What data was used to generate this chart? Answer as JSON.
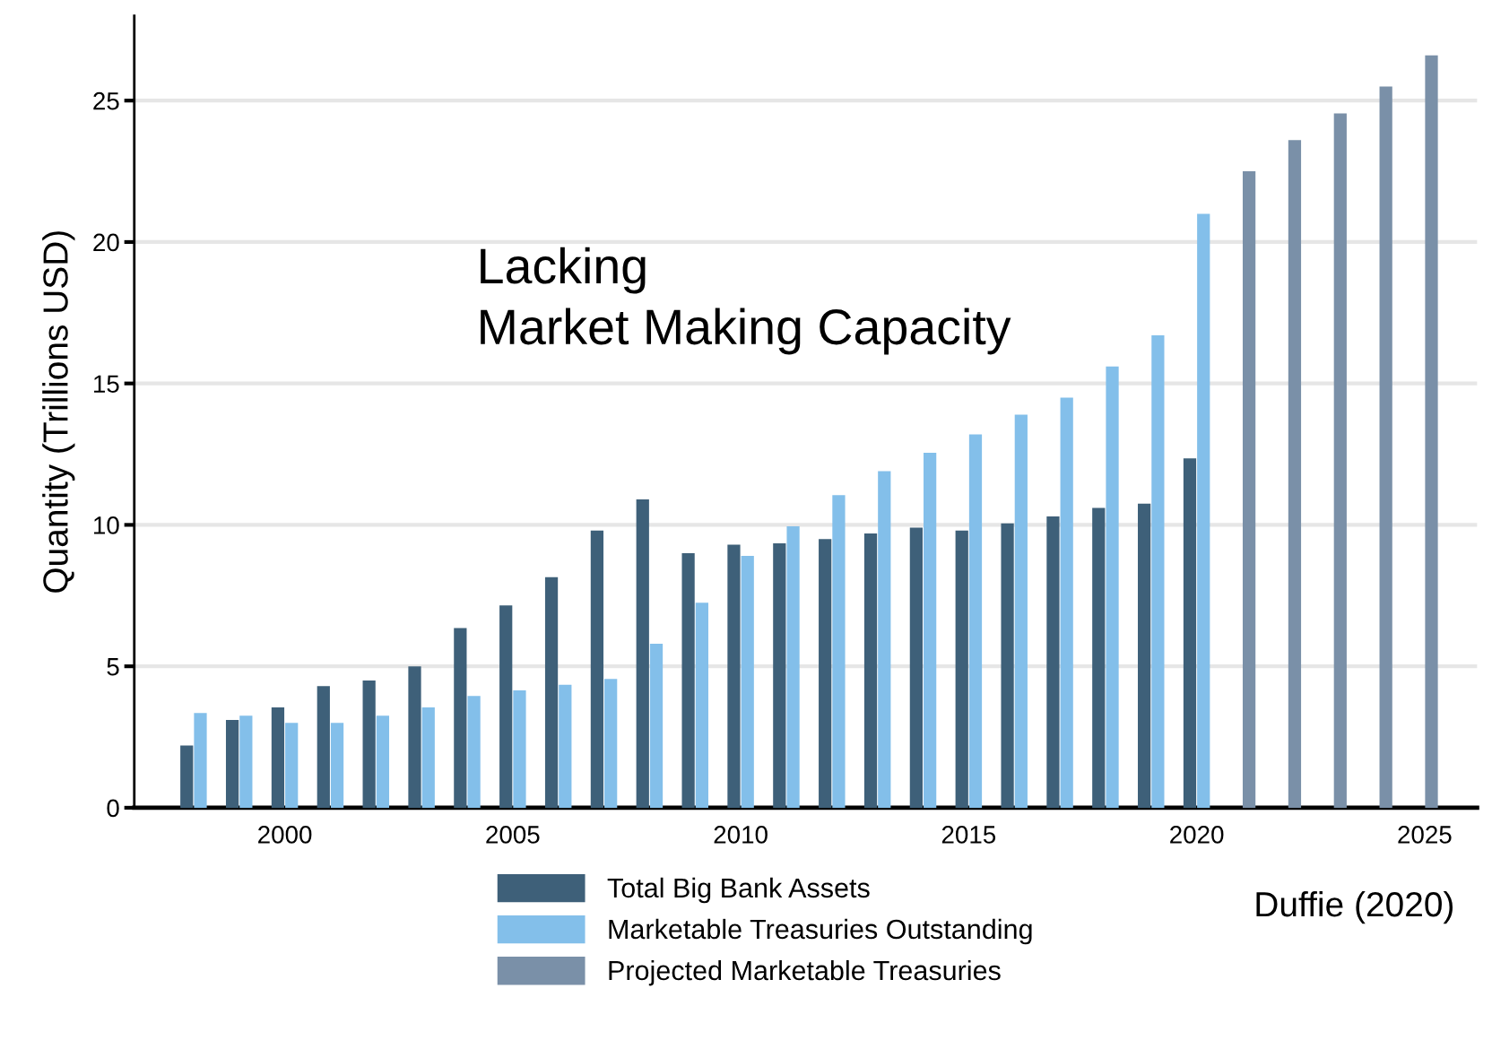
{
  "chart_data": {
    "type": "bar",
    "ylabel": "Quantity (Trillions USD)",
    "series": [
      {
        "name": "Total Big Bank Assets",
        "color": "#3e6079",
        "x": [
          1998,
          1999,
          2000,
          2001,
          2002,
          2003,
          2004,
          2005,
          2006,
          2007,
          2008,
          2009,
          2010,
          2011,
          2012,
          2013,
          2014,
          2015,
          2016,
          2017,
          2018,
          2019,
          2020
        ],
        "values": [
          2.2,
          3.1,
          3.55,
          4.3,
          4.5,
          5.0,
          6.35,
          7.15,
          8.15,
          9.8,
          10.9,
          9.0,
          9.3,
          9.35,
          9.5,
          9.7,
          9.9,
          9.8,
          10.05,
          10.3,
          10.6,
          10.75,
          12.35
        ]
      },
      {
        "name": "Marketable Treasuries Outstanding",
        "color": "#83bfea",
        "x": [
          1998,
          1999,
          2000,
          2001,
          2002,
          2003,
          2004,
          2005,
          2006,
          2007,
          2008,
          2009,
          2010,
          2011,
          2012,
          2013,
          2014,
          2015,
          2016,
          2017,
          2018,
          2019,
          2020
        ],
        "values": [
          3.35,
          3.25,
          3.0,
          3.0,
          3.25,
          3.55,
          3.95,
          4.15,
          4.35,
          4.55,
          5.8,
          7.25,
          8.9,
          9.95,
          11.05,
          11.9,
          12.55,
          13.2,
          13.9,
          14.5,
          15.6,
          16.7,
          21.0
        ]
      },
      {
        "name": "Projected Marketable Treasuries",
        "color": "#7a90a8",
        "x": [
          2021,
          2022,
          2023,
          2024,
          2025
        ],
        "values": [
          22.5,
          23.6,
          24.55,
          25.5,
          26.6
        ]
      }
    ],
    "xlim": [
      1996.7,
      2026.15
    ],
    "xticks": [
      2000,
      2005,
      2010,
      2015,
      2020,
      2025
    ],
    "ylim": [
      0,
      28
    ],
    "yticks": [
      0,
      5,
      10,
      15,
      20,
      25
    ],
    "grid": "y",
    "legend": "bottom",
    "annotations": [
      "Lacking\nMarket Making Capacity",
      "Duffie (2020)"
    ]
  }
}
